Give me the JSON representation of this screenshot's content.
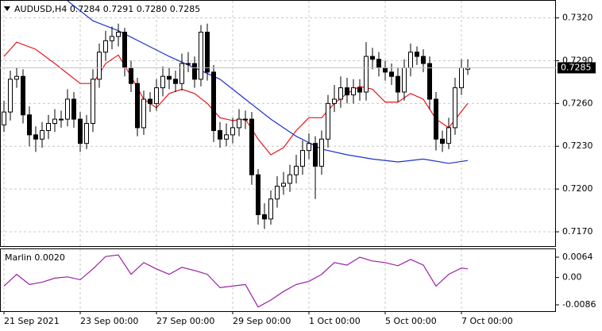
{
  "chart_data": {
    "type": "candlestick",
    "title": "AUDUSD,H4  0.7284 0.7291 0.7280 0.7285",
    "xlim": [
      -0.625,
      86.875
    ],
    "xticks": [
      {
        "value": 0,
        "label": "21 Sep 2021"
      },
      {
        "value": 12,
        "label": "23 Sep 00:00"
      },
      {
        "value": 24,
        "label": "27 Sep 00:00"
      },
      {
        "value": 36,
        "label": "29 Sep 00:00"
      },
      {
        "value": 48,
        "label": "1 Oct 00:00"
      },
      {
        "value": 60,
        "label": "5 Oct 00:00"
      },
      {
        "value": 72,
        "label": "7 Oct 00:00"
      }
    ],
    "ylim": [
      0.716,
      0.7332
    ],
    "yticks": [
      {
        "value": 0.732,
        "label": "0.7320"
      },
      {
        "value": 0.729,
        "label": "0.7290"
      },
      {
        "value": 0.726,
        "label": "0.7260"
      },
      {
        "value": 0.723,
        "label": "0.7230"
      },
      {
        "value": 0.72,
        "label": "0.7200"
      },
      {
        "value": 0.717,
        "label": "0.7170"
      }
    ],
    "grid": true,
    "open": [
      0.7245,
      0.7254,
      0.7277,
      0.7279,
      0.7252,
      0.7238,
      0.7235,
      0.7241,
      0.7246,
      0.7249,
      0.7249,
      0.7263,
      0.7249,
      0.7232,
      0.7246,
      0.7277,
      0.7296,
      0.7304,
      0.7307,
      0.731,
      0.7285,
      0.7274,
      0.7243,
      0.7263,
      0.726,
      0.7271,
      0.7279,
      0.7277,
      0.7274,
      0.7288,
      0.7288,
      0.7277,
      0.731,
      0.7282,
      0.7241,
      0.7235,
      0.7238,
      0.7243,
      0.7249,
      0.7249,
      0.721,
      0.7182,
      0.7179,
      0.7193,
      0.7202,
      0.7204,
      0.721,
      0.7216,
      0.7227,
      0.7232,
      0.7216,
      0.7235,
      0.726,
      0.7263,
      0.7271,
      0.7266,
      0.7271,
      0.7268,
      0.7293,
      0.7291,
      0.7285,
      0.7282,
      0.7279,
      0.7268,
      0.7285,
      0.7296,
      0.7293,
      0.7288,
      0.7263,
      0.7235,
      0.7232,
      0.7243,
      0.7271,
      0.7284
    ],
    "high": [
      0.7262,
      0.7283,
      0.7285,
      0.7284,
      0.7258,
      0.7244,
      0.7247,
      0.7252,
      0.7256,
      0.7255,
      0.727,
      0.7268,
      0.7254,
      0.7252,
      0.7284,
      0.7302,
      0.7311,
      0.7314,
      0.7316,
      0.7313,
      0.729,
      0.7278,
      0.7269,
      0.7268,
      0.7277,
      0.7286,
      0.7285,
      0.7283,
      0.7295,
      0.7296,
      0.7293,
      0.7315,
      0.7316,
      0.7287,
      0.7247,
      0.7246,
      0.725,
      0.7256,
      0.7255,
      0.7254,
      0.7214,
      0.719,
      0.7199,
      0.7209,
      0.7212,
      0.7217,
      0.7224,
      0.7234,
      0.7239,
      0.7237,
      0.7241,
      0.7266,
      0.7273,
      0.7279,
      0.7278,
      0.7277,
      0.7277,
      0.7303,
      0.7299,
      0.7296,
      0.729,
      0.7288,
      0.7285,
      0.7291,
      0.7302,
      0.73,
      0.7298,
      0.7293,
      0.7268,
      0.7241,
      0.725,
      0.7278,
      0.7291,
      0.7291
    ],
    "low": [
      0.724,
      0.7248,
      0.7271,
      0.7246,
      0.723,
      0.7226,
      0.7229,
      0.7235,
      0.724,
      0.7243,
      0.7244,
      0.7243,
      0.7226,
      0.7228,
      0.724,
      0.7271,
      0.729,
      0.7298,
      0.73,
      0.7279,
      0.7268,
      0.7237,
      0.7238,
      0.7254,
      0.7255,
      0.7265,
      0.727,
      0.7268,
      0.7269,
      0.7282,
      0.7271,
      0.7272,
      0.7276,
      0.7233,
      0.7229,
      0.723,
      0.7232,
      0.7237,
      0.7242,
      0.7203,
      0.7175,
      0.7172,
      0.7175,
      0.7187,
      0.7196,
      0.7198,
      0.7204,
      0.721,
      0.7221,
      0.7193,
      0.721,
      0.7229,
      0.7254,
      0.7257,
      0.726,
      0.726,
      0.7262,
      0.7262,
      0.7284,
      0.7279,
      0.7276,
      0.7273,
      0.7261,
      0.7262,
      0.7279,
      0.7287,
      0.7282,
      0.7256,
      0.7227,
      0.7226,
      0.7228,
      0.7238,
      0.7266,
      0.728
    ],
    "close": [
      0.7254,
      0.7277,
      0.7279,
      0.7252,
      0.7238,
      0.7235,
      0.7241,
      0.7246,
      0.7249,
      0.7249,
      0.7263,
      0.7249,
      0.7232,
      0.7246,
      0.7277,
      0.7296,
      0.7304,
      0.7307,
      0.731,
      0.7285,
      0.7274,
      0.7243,
      0.7263,
      0.726,
      0.7271,
      0.7279,
      0.7277,
      0.7274,
      0.7288,
      0.7288,
      0.7277,
      0.731,
      0.7282,
      0.7241,
      0.7235,
      0.7238,
      0.7243,
      0.7249,
      0.7249,
      0.721,
      0.7182,
      0.7179,
      0.7193,
      0.7202,
      0.7204,
      0.721,
      0.7216,
      0.7227,
      0.7232,
      0.7216,
      0.7235,
      0.726,
      0.7263,
      0.7271,
      0.7266,
      0.7271,
      0.7268,
      0.7293,
      0.7291,
      0.7285,
      0.7282,
      0.7279,
      0.7268,
      0.7285,
      0.7296,
      0.7293,
      0.7288,
      0.7263,
      0.7235,
      0.7232,
      0.7243,
      0.7271,
      0.7285,
      0.7285
    ],
    "series": [
      {
        "color": "#e8161e",
        "x": [
          0,
          2,
          5,
          8,
          10,
          12,
          14,
          16,
          18,
          20,
          22,
          24,
          26,
          28,
          30,
          32,
          34,
          36,
          38,
          40,
          42,
          44,
          46,
          48,
          50,
          52,
          54,
          56,
          58,
          60,
          62,
          64,
          66,
          68,
          70,
          73
        ],
        "values": [
          0.7293,
          0.7303,
          0.7298,
          0.7288,
          0.7281,
          0.7274,
          0.7274,
          0.7288,
          0.7294,
          0.7279,
          0.7263,
          0.7257,
          0.7267,
          0.727,
          0.7267,
          0.726,
          0.725,
          0.7248,
          0.7249,
          0.7235,
          0.7224,
          0.7229,
          0.7241,
          0.725,
          0.725,
          0.726,
          0.7267,
          0.7272,
          0.727,
          0.7261,
          0.7261,
          0.7267,
          0.7263,
          0.7249,
          0.7243,
          0.726
        ]
      },
      {
        "color": "#1f2fd0",
        "x": [
          10,
          14,
          18,
          22,
          26,
          30,
          34,
          38,
          42,
          46,
          50,
          54,
          58,
          62,
          66,
          70,
          73
        ],
        "values": [
          0.7332,
          0.7318,
          0.7311,
          0.7302,
          0.7293,
          0.7285,
          0.7277,
          0.7263,
          0.7249,
          0.7237,
          0.7228,
          0.7224,
          0.7221,
          0.7219,
          0.7221,
          0.7218,
          0.722
        ]
      }
    ],
    "indicator": {
      "type": "line",
      "title": "Marlin 0.0020",
      "color": "#9b1fa8",
      "ylim": [
        -0.0106,
        0.0089
      ],
      "yticks": [
        {
          "value": 0.0064,
          "label": "0.0064"
        },
        {
          "value": 0,
          "label": "0.00"
        },
        {
          "value": -0.0086,
          "label": "-0.0086"
        }
      ],
      "x": [
        0,
        2,
        4,
        6,
        8,
        10,
        12,
        14,
        16,
        18,
        20,
        22,
        24,
        26,
        28,
        30,
        32,
        34,
        36,
        38,
        40,
        42,
        44,
        46,
        48,
        50,
        52,
        54,
        56,
        58,
        60,
        62,
        64,
        66,
        68,
        70,
        72,
        73
      ],
      "values": [
        -0.0027,
        0.001,
        -0.0022,
        -0.0015,
        -0.0002,
        0.0002,
        -0.0007,
        0.0027,
        0.0066,
        0.0071,
        0.001,
        0.0047,
        0.0027,
        0.001,
        0.0032,
        0.0022,
        0.001,
        -0.0032,
        -0.0027,
        -0.0022,
        -0.0093,
        -0.0071,
        -0.0044,
        -0.0022,
        -0.0012,
        0.001,
        0.0047,
        0.0039,
        0.0064,
        0.0052,
        0.0047,
        0.0037,
        0.0057,
        0.0039,
        -0.0027,
        0.001,
        0.003,
        0.0027
      ]
    }
  }
}
